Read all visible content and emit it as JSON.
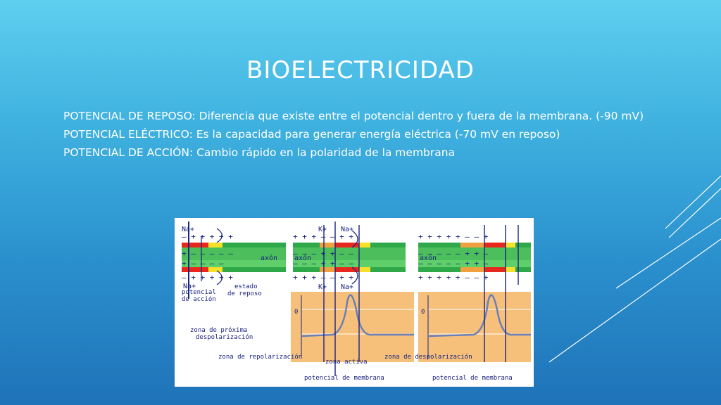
{
  "slide": {
    "title": "BIOELECTRICIDAD",
    "bullets": [
      "POTENCIAL DE REPOSO: Diferencia que existe entre el potencial dentro y fuera de la membrana. (-90 mV)",
      "POTENCIAL ELÉCTRICO: Es la capacidad para generar energía eléctrica (-70 mV en reposo)",
      "POTENCIAL DE ACCIÓN: Cambio rápido en la polaridad de la membrana"
    ]
  },
  "figure": {
    "labels": {
      "na_top": "Na+",
      "na_bottom": "Na+",
      "k_top": "K+",
      "na_top2": "Na+",
      "k_bottom": "K+",
      "na_bottom2": "Na+",
      "axon1": "axón",
      "axon2": "axón",
      "axon3": "axón",
      "potencial_accion": "potencial de acción",
      "estado_reposo": "estado de reposo",
      "zona_proxima": "zona de próxima despolarización",
      "zona_repolarizacion": "zona de repolarización",
      "zona_activa": "zona activa",
      "zona_despolarizacion": "zona de despolarización",
      "potencial_membrana_1": "potencial de membrana",
      "potencial_membrana_2": "potencial de membrana",
      "zero_1": "0",
      "zero_2": "0"
    },
    "colors": {
      "green": "#2fa84a",
      "red": "#e8281e",
      "yellow": "#f5e12a",
      "orange": "#f0a040",
      "panel": "#f6c07a",
      "line": "#1a237e"
    }
  }
}
